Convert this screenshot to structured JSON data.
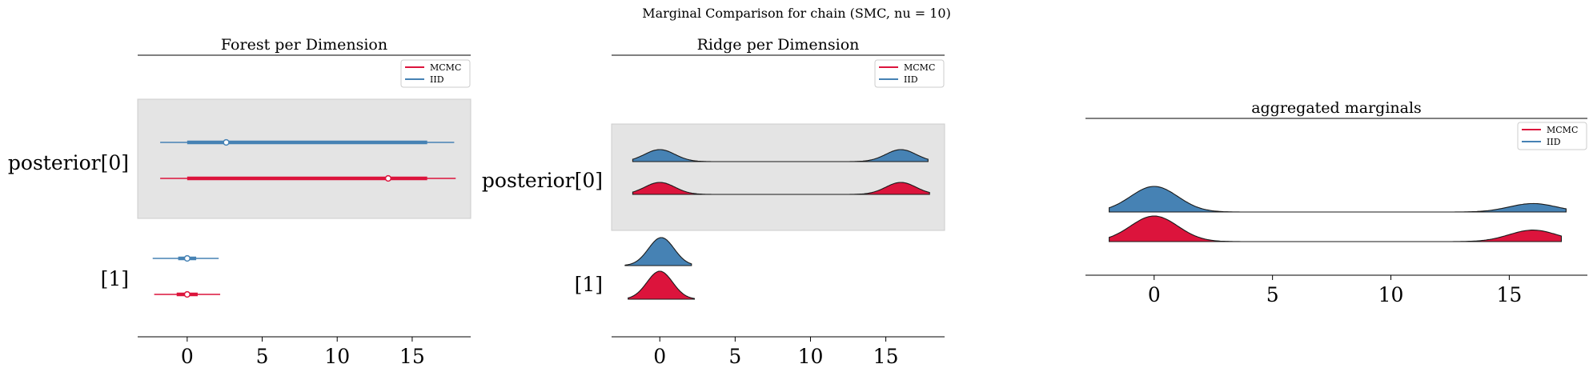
{
  "figure_title": "Marginal Comparison for chain (SMC, nu = 10)",
  "colors": {
    "mcmc": "#dc143c",
    "iid": "#4682b4",
    "band": "#e4e4e4"
  },
  "legend": [
    "MCMC",
    "IID"
  ],
  "chart_data": [
    {
      "type": "forest",
      "title": "Forest per Dimension",
      "xlim": [
        -3.3,
        18.9
      ],
      "xticks": [
        0,
        5,
        10,
        15
      ],
      "ylabels": [
        "posterior[0]",
        "[1]"
      ],
      "legend_position": "top-right",
      "rows": [
        {
          "label": "posterior[0]",
          "series": [
            {
              "name": "IID",
              "hdi94": [
                -1.8,
                17.8
              ],
              "iqr": [
                0.0,
                16.0
              ],
              "point": 2.6
            },
            {
              "name": "MCMC",
              "hdi94": [
                -1.8,
                17.9
              ],
              "iqr": [
                0.0,
                16.0
              ],
              "point": 13.4
            }
          ]
        },
        {
          "label": "[1]",
          "series": [
            {
              "name": "IID",
              "hdi94": [
                -2.3,
                2.1
              ],
              "iqr": [
                -0.6,
                0.6
              ],
              "point": 0.0
            },
            {
              "name": "MCMC",
              "hdi94": [
                -2.2,
                2.2
              ],
              "iqr": [
                -0.7,
                0.7
              ],
              "point": 0.0
            }
          ]
        }
      ]
    },
    {
      "type": "ridge",
      "title": "Ridge per Dimension",
      "xlim": [
        -3.2,
        18.9
      ],
      "xticks": [
        0,
        5,
        10,
        15
      ],
      "ylabels": [
        "posterior[0]",
        "[1]"
      ],
      "legend_position": "top-right",
      "rows": [
        {
          "label": "posterior[0]",
          "series": [
            {
              "name": "IID",
              "x_range": [
                -1.8,
                17.8
              ],
              "modes": [
                {
                  "mu": 0.0,
                  "sigma": 1.0,
                  "weight": 1.0
                },
                {
                  "mu": 16.0,
                  "sigma": 1.0,
                  "weight": 1.0
                }
              ]
            },
            {
              "name": "MCMC",
              "x_range": [
                -1.8,
                17.9
              ],
              "modes": [
                {
                  "mu": 0.0,
                  "sigma": 1.0,
                  "weight": 1.0
                },
                {
                  "mu": 16.0,
                  "sigma": 1.0,
                  "weight": 1.0
                }
              ]
            }
          ]
        },
        {
          "label": "[1]",
          "series": [
            {
              "name": "IID",
              "x_range": [
                -2.3,
                2.1
              ],
              "modes": [
                {
                  "mu": 0.1,
                  "sigma": 0.85,
                  "weight": 1.0
                }
              ]
            },
            {
              "name": "MCMC",
              "x_range": [
                -2.1,
                2.3
              ],
              "modes": [
                {
                  "mu": 0.0,
                  "sigma": 0.85,
                  "weight": 1.0
                }
              ]
            }
          ]
        }
      ]
    },
    {
      "type": "ridge",
      "title": "aggregated marginals",
      "xlim": [
        -2.9,
        18.3
      ],
      "xticks": [
        0,
        5,
        10,
        15
      ],
      "legend_position": "top-right",
      "series": [
        {
          "name": "IID",
          "x_range": [
            -1.9,
            17.4
          ],
          "modes": [
            {
              "mu": 0.0,
              "sigma": 1.0,
              "weight": 1.0
            },
            {
              "mu": 16.0,
              "sigma": 1.0,
              "weight": 0.33
            }
          ]
        },
        {
          "name": "MCMC",
          "x_range": [
            -1.9,
            17.2
          ],
          "modes": [
            {
              "mu": 0.0,
              "sigma": 1.0,
              "weight": 1.0
            },
            {
              "mu": 16.0,
              "sigma": 1.0,
              "weight": 0.45
            }
          ]
        }
      ]
    }
  ]
}
